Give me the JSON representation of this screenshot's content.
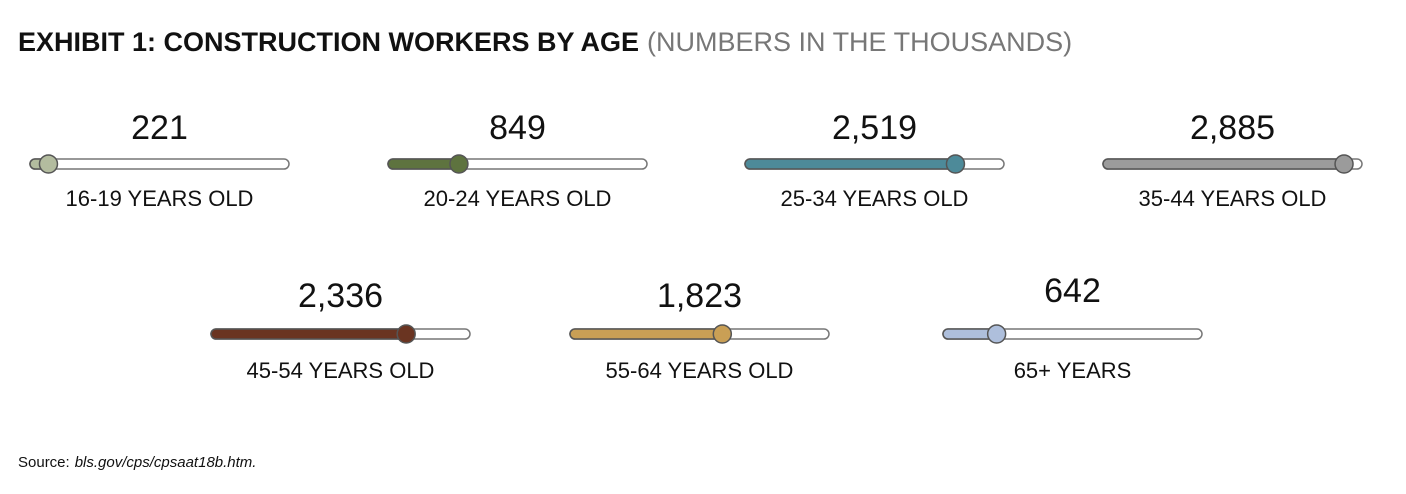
{
  "chart_data": {
    "type": "slider",
    "title": "EXHIBIT 1: CONSTRUCTION WORKERS BY AGE",
    "subtitle": "(NUMBERS IN THE THOUSANDS)",
    "categories": [
      "16-19 YEARS OLD",
      "20-24 YEARS OLD",
      "25-34 YEARS OLD",
      "35-44 YEARS OLD",
      "45-54 YEARS OLD",
      "55-64 YEARS OLD",
      "65+ YEARS"
    ],
    "values": [
      221,
      849,
      2519,
      2885,
      2336,
      1823,
      642
    ],
    "value_labels": [
      "221",
      "849",
      "2,519",
      "2,885",
      "2,336",
      "1,823",
      "642"
    ],
    "colors": [
      "#b3bc9f",
      "#5e733f",
      "#4d8a99",
      "#9b9b9b",
      "#6a3421",
      "#c99f55",
      "#aebfdc"
    ],
    "xlim": [
      0,
      3100
    ],
    "source_prefix": "Source:",
    "source": "bls.gov/cps/cpsaat18b.htm."
  }
}
